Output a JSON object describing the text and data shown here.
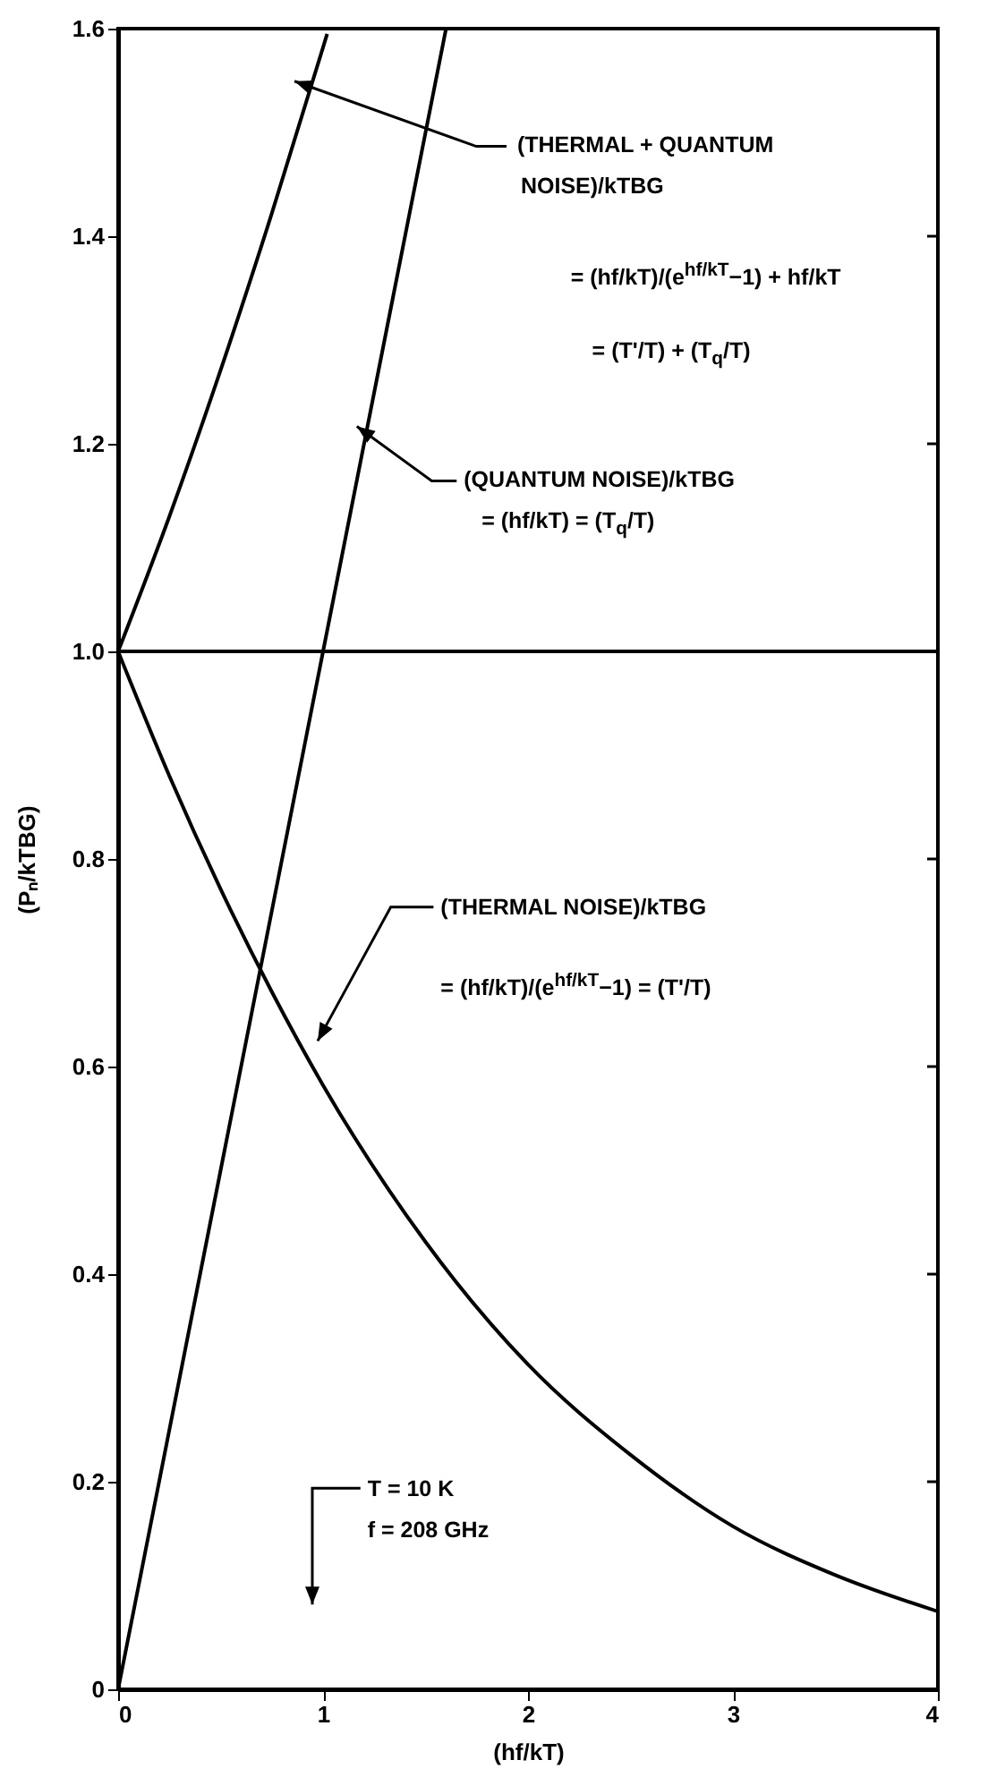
{
  "chart_data": {
    "type": "line",
    "xlabel": "(hf/kT)",
    "ylabel": "(Pₙ/kTBG)",
    "xlim": [
      0,
      4
    ],
    "ylim": [
      0,
      1.6
    ],
    "xticks": [
      0,
      1,
      2,
      3,
      4
    ],
    "yticks": [
      0,
      {
        "value": 0.2,
        "label": "0.2"
      },
      {
        "value": 0.4,
        "label": "0.4"
      },
      {
        "value": 0.6,
        "label": "0.6"
      },
      {
        "value": 0.8,
        "label": "0.8"
      },
      {
        "value": 1,
        "label": "1.0"
      },
      {
        "value": 1.2,
        "label": "1.2"
      },
      {
        "value": 1.4,
        "label": "1.4"
      },
      {
        "value": 1.6,
        "label": "1.6"
      }
    ],
    "grid": false,
    "marker": "none",
    "line_style": "solid",
    "series": [
      {
        "color": "#000000",
        "x": [
          0,
          0.25,
          0.5,
          0.75,
          1,
          1.02
        ],
        "values": [
          1,
          1.13,
          1.271,
          1.422,
          1.582,
          1.595
        ]
      },
      {
        "color": "#000000",
        "x": [
          0,
          1,
          1.6
        ],
        "values": [
          0,
          1,
          1.6
        ]
      },
      {
        "color": "#000000",
        "x": [
          0,
          0.25,
          0.5,
          0.75,
          1,
          1.5,
          2,
          2.5,
          3,
          3.5,
          4
        ],
        "values": [
          1,
          0.88,
          0.771,
          0.672,
          0.582,
          0.431,
          0.313,
          0.226,
          0.157,
          0.11,
          0.075
        ]
      }
    ],
    "ref_lines": [
      {
        "axis": "y",
        "value": 1,
        "color": "#000000"
      }
    ],
    "annotations": [
      "(THERMAL + QUANTUM",
      "NOISE)/kTBG",
      "= (hf/kT)/(e$^{hf/kT}$−1) + hf/kT",
      "= (T'/T) + (T$_{q}$/T)",
      "(QUANTUM NOISE)/kTBG",
      "= (hf/kT) = (T$_{q}$/T)",
      "(THERMAL NOISE)/kTBG",
      "= (hf/kT)/(e$^{hf/kT}$−1) = (T'/T)",
      "T = 10 K",
      "f = 208 GHz"
    ]
  }
}
